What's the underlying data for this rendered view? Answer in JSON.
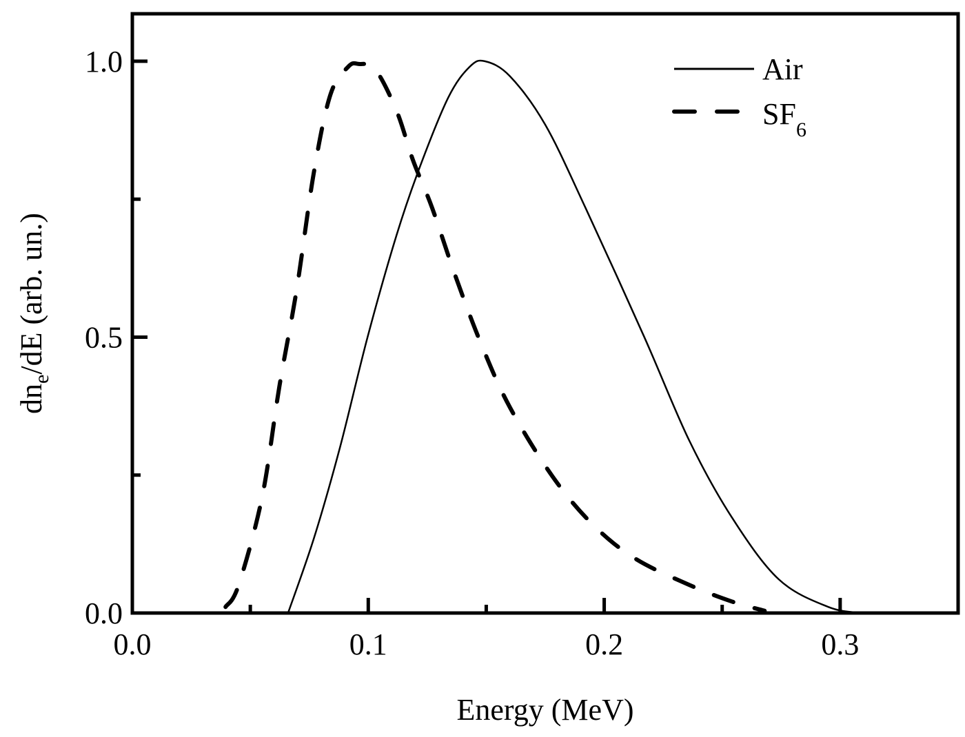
{
  "chart_data": {
    "type": "line",
    "title": "",
    "xlabel": "Energy (MeV)",
    "ylabel": {
      "main": "dn",
      "sub": "e",
      "rest": "/dE (arb. un.)"
    },
    "xlim": [
      0.0,
      0.35
    ],
    "ylim": [
      0.0,
      1.086
    ],
    "xticks": [
      {
        "v": 0.0,
        "label": "0.0"
      },
      {
        "v": 0.1,
        "label": "0.1"
      },
      {
        "v": 0.2,
        "label": "0.2"
      },
      {
        "v": 0.3,
        "label": "0.3"
      }
    ],
    "xminor": [
      0.05,
      0.15,
      0.25
    ],
    "yticks": [
      {
        "v": 0.0,
        "label": "0.0"
      },
      {
        "v": 0.5,
        "label": "0.5"
      },
      {
        "v": 1.0,
        "label": "1.0"
      }
    ],
    "yminor": [
      0.25,
      0.75
    ],
    "grid": false,
    "legend_position": "top-right",
    "series": [
      {
        "name": "Air",
        "name_sub": "",
        "style": "solid",
        "color": "#000000",
        "x": [
          0.066,
          0.077,
          0.088,
          0.0997,
          0.112,
          0.122,
          0.134,
          0.143,
          0.1494,
          0.16,
          0.175,
          0.192,
          0.217,
          0.236,
          0.254,
          0.274,
          0.295,
          0.309
        ],
        "y": [
          0.0,
          0.136,
          0.3,
          0.5,
          0.685,
          0.81,
          0.935,
          0.99,
          1.0,
          0.973,
          0.885,
          0.735,
          0.5,
          0.313,
          0.174,
          0.061,
          0.011,
          0.0
        ]
      },
      {
        "name": "SF",
        "name_sub": "6",
        "style": "dashed",
        "color": "#000000",
        "x": [
          0.0395,
          0.045,
          0.055,
          0.0623,
          0.0696,
          0.077,
          0.084,
          0.0915,
          0.096,
          0.103,
          0.112,
          0.119,
          0.127,
          0.137,
          0.148,
          0.16,
          0.178,
          0.195,
          0.213,
          0.236,
          0.254,
          0.268
        ],
        "y": [
          0.011,
          0.05,
          0.21,
          0.41,
          0.585,
          0.8,
          0.94,
          0.99,
          0.995,
          0.985,
          0.91,
          0.82,
          0.735,
          0.61,
          0.486,
          0.373,
          0.248,
          0.161,
          0.099,
          0.051,
          0.021,
          0.004
        ]
      }
    ]
  }
}
